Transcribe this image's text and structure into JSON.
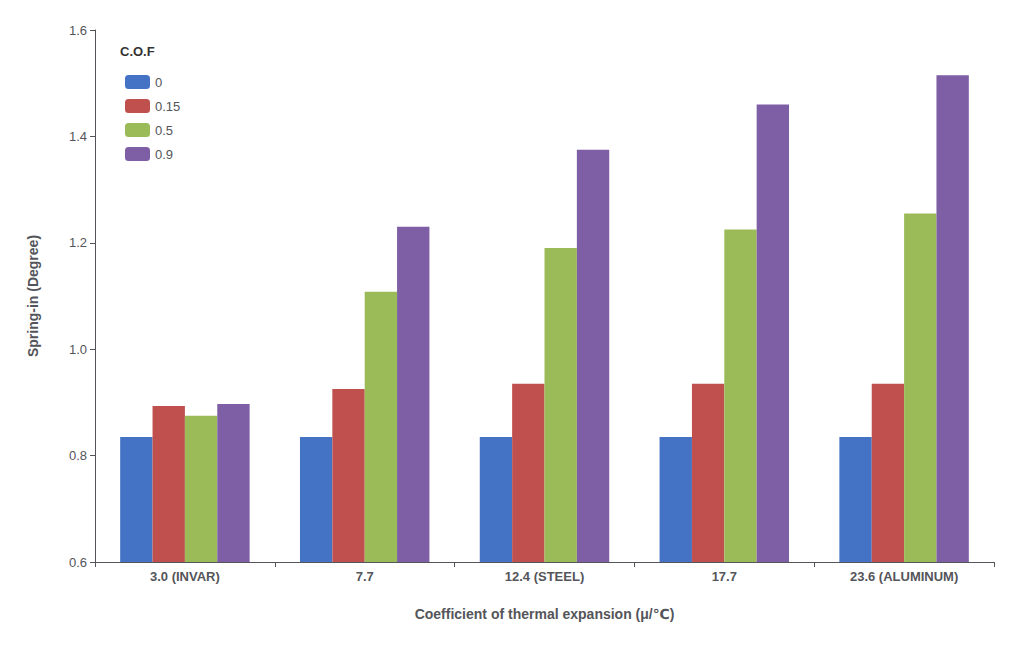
{
  "chart_data": {
    "type": "bar",
    "title": "",
    "xlabel": "Coefficient of thermal expansion (μ/℃)",
    "ylabel": "Spring-in (Degree)",
    "categories": [
      "3.0 (INVAR)",
      "7.7",
      "12.4 (STEEL)",
      "17.7",
      "23.6 (ALUMINUM)"
    ],
    "series": [
      {
        "name": "0",
        "color": "#4472c4",
        "values": [
          0.835,
          0.835,
          0.835,
          0.835,
          0.835
        ]
      },
      {
        "name": "0.15",
        "color": "#c0504d",
        "values": [
          0.893,
          0.925,
          0.935,
          0.935,
          0.935
        ]
      },
      {
        "name": "0.5",
        "color": "#9bbb59",
        "values": [
          0.875,
          1.108,
          1.19,
          1.225,
          1.255
        ]
      },
      {
        "name": "0.9",
        "color": "#7e5ea4",
        "values": [
          0.897,
          1.23,
          1.375,
          1.46,
          1.515
        ]
      }
    ],
    "legend_title": "C.O.F",
    "legend": "upper left",
    "ylim": [
      0.6,
      1.6
    ],
    "yticks": [
      0.6,
      0.8,
      {
        "value": 1.0,
        "label": "1.0"
      },
      1.2,
      1.4,
      1.6
    ],
    "grid": false
  }
}
